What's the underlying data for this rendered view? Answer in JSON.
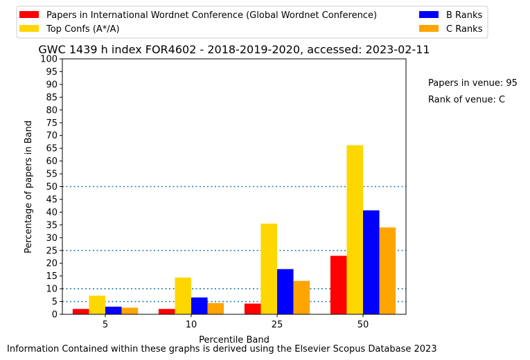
{
  "chart_data": {
    "type": "bar",
    "title": "GWC 1439 h index FOR4602 - 2018-2019-2020, accessed: 2023-02-11",
    "xlabel": "Percentile Band",
    "ylabel": "Percentage of papers in Band",
    "categories": [
      "5",
      "10",
      "25",
      "50"
    ],
    "ylim": [
      0,
      100
    ],
    "yticks": [
      0,
      5,
      10,
      15,
      20,
      25,
      30,
      35,
      40,
      45,
      50,
      55,
      60,
      65,
      70,
      75,
      80,
      85,
      90,
      95,
      100
    ],
    "reference_lines": [
      5,
      10,
      25,
      50
    ],
    "legend_position": "top",
    "series": [
      {
        "name": "Papers in International Wordnet Conference (Global Wordnet Conference)",
        "color": "#ff0000",
        "values": [
          2.1,
          2.1,
          4.2,
          22.9
        ]
      },
      {
        "name": "Top Confs (A*/A)",
        "color": "#ffd700",
        "values": [
          7.3,
          14.4,
          35.5,
          66.2
        ]
      },
      {
        "name": "B Ranks",
        "color": "#0000ff",
        "values": [
          3.0,
          6.6,
          17.7,
          40.7
        ]
      },
      {
        "name": "C Ranks",
        "color": "#ffa500",
        "values": [
          2.6,
          4.4,
          13.1,
          34.0
        ]
      }
    ]
  },
  "annotations": {
    "papers_in_venue": "Papers in venue: 95",
    "rank_of_venue": "Rank of venue: C"
  },
  "footer": "Information Contained within these graphs is derived using the Elsevier Scopus Database 2023"
}
